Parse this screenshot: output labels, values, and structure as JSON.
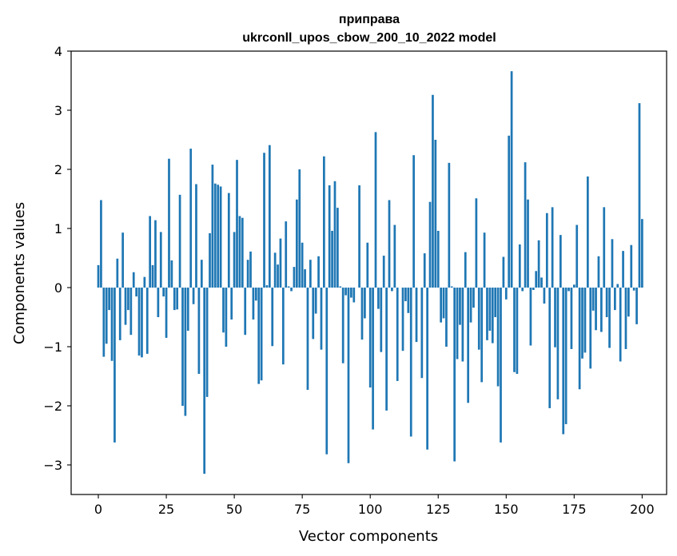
{
  "chart_data": {
    "type": "bar",
    "title_line1": "приправа",
    "title_line2": "ukrconll_upos_cbow_200_10_2022 model",
    "xlabel": "Vector components",
    "ylabel": "Components values",
    "xlim": [
      -10,
      209
    ],
    "ylim": [
      -3.5,
      4
    ],
    "xticks": [
      0,
      25,
      50,
      75,
      100,
      125,
      150,
      175,
      200
    ],
    "yticks": [
      -3,
      -2,
      -1,
      0,
      1,
      2,
      3,
      4
    ],
    "xtick_labels": [
      "0",
      "25",
      "50",
      "75",
      "100",
      "125",
      "150",
      "175",
      "200"
    ],
    "ytick_labels": [
      "−3",
      "−2",
      "−1",
      "0",
      "1",
      "2",
      "3",
      "4"
    ],
    "bar_color": "#1f77b4",
    "grid": false,
    "values": [
      0.38,
      1.48,
      -1.17,
      -0.95,
      -0.38,
      -1.24,
      -2.62,
      0.49,
      -0.89,
      0.93,
      -0.63,
      -0.38,
      -0.8,
      0.26,
      -0.15,
      -1.15,
      -1.18,
      0.18,
      -1.12,
      1.21,
      0.38,
      1.14,
      -0.5,
      0.94,
      -0.15,
      -0.85,
      2.18,
      0.46,
      -0.38,
      -0.37,
      1.57,
      -2.0,
      -2.17,
      -0.73,
      2.35,
      -0.28,
      1.75,
      -1.46,
      0.47,
      -3.15,
      -1.85,
      0.92,
      2.08,
      1.76,
      1.74,
      1.71,
      -0.76,
      -1.0,
      1.6,
      -0.54,
      0.94,
      2.16,
      1.21,
      1.18,
      -0.8,
      0.47,
      0.61,
      -0.54,
      -0.22,
      -1.63,
      -1.57,
      2.28,
      0.04,
      2.41,
      -0.99,
      0.59,
      0.39,
      0.83,
      -1.3,
      1.12,
      0.02,
      -0.06,
      0.35,
      1.49,
      2.0,
      0.76,
      0.31,
      -1.73,
      0.47,
      -0.87,
      -0.44,
      0.53,
      -1.05,
      2.22,
      -2.82,
      1.73,
      0.96,
      1.8,
      1.35,
      0.02,
      -1.28,
      -0.13,
      -2.97,
      -0.17,
      -0.25,
      0.0,
      1.73,
      -0.88,
      -0.52,
      0.76,
      -1.69,
      -2.4,
      2.63,
      -0.36,
      -1.09,
      0.54,
      -2.08,
      1.48,
      -0.06,
      1.06,
      -1.58,
      0.0,
      -1.07,
      -0.23,
      -0.43,
      -2.52,
      2.24,
      -0.92,
      0.0,
      -1.53,
      0.58,
      -2.74,
      1.45,
      3.26,
      2.5,
      0.96,
      -0.59,
      -0.52,
      -1.0,
      2.11,
      0.02,
      -2.94,
      -1.21,
      -0.63,
      -1.25,
      0.6,
      -1.95,
      -0.59,
      -0.34,
      1.51,
      -1.05,
      -1.6,
      0.93,
      -0.89,
      -0.73,
      -0.94,
      -0.5,
      -1.67,
      -2.62,
      0.52,
      -0.2,
      2.57,
      3.66,
      -1.43,
      -1.46,
      0.73,
      -0.06,
      2.12,
      1.49,
      -0.98,
      -0.04,
      0.28,
      0.8,
      0.17,
      -0.27,
      1.26,
      -2.04,
      1.36,
      -1.01,
      -1.89,
      0.89,
      -2.48,
      -2.31,
      -0.06,
      -1.04,
      0.05,
      1.06,
      -1.72,
      -1.2,
      -1.1,
      1.88,
      -1.37,
      -0.39,
      -0.72,
      0.53,
      -0.75,
      1.36,
      -0.5,
      -1.02,
      0.82,
      -0.38,
      0.06,
      -1.25,
      0.62,
      -1.04,
      -0.49,
      0.72,
      -0.05,
      -0.62,
      3.12,
      1.16
    ]
  }
}
